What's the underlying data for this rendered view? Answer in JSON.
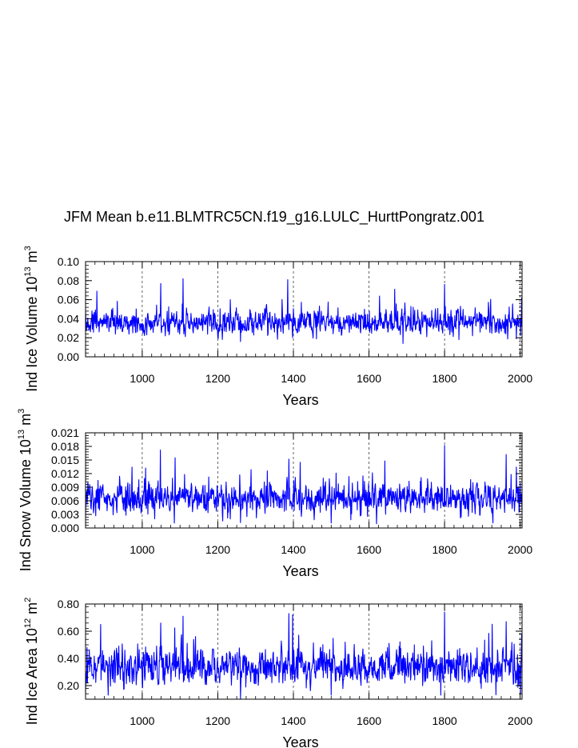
{
  "title": "JFM Mean b.e11.BLMTRC5CN.f19_g16.LULC_HurttPongratz.001",
  "colors": {
    "series": "#0000ff",
    "axis": "#000000",
    "gridline": "#000000"
  },
  "chart_data": [
    {
      "type": "line",
      "name": "ice-volume",
      "ylabel": {
        "prefix": "Ind Ice Volume 10",
        "exp": "13",
        "unit": " m",
        "unit_exp": "3"
      },
      "xlabel": "Years",
      "xlim": [
        850,
        2005
      ],
      "ylim": [
        0.0,
        0.1
      ],
      "xticks": [
        1000,
        1200,
        1400,
        1600,
        1800,
        2000
      ],
      "xtick_labels": [
        "1000",
        "1200",
        "1400",
        "1600",
        "1800",
        "2000"
      ],
      "yticks": [
        0.0,
        0.02,
        0.04,
        0.06,
        0.08,
        0.1
      ],
      "ytick_labels": [
        "0.00",
        "0.02",
        "0.04",
        "0.06",
        "0.08",
        "0.10"
      ],
      "vgrid_dashed": [
        1000,
        1200,
        1400,
        1600,
        1800,
        2000
      ],
      "series": [
        {
          "name": "JFM Mean",
          "x_start": 850,
          "x_step": 1,
          "mean": 0.036,
          "spread": 0.0085,
          "seed": 11,
          "peaks": [
            [
              880,
              0.069
            ],
            [
              1049,
              0.077
            ],
            [
              1108,
              0.082
            ],
            [
              1385,
              0.081
            ],
            [
              1668,
              0.071
            ],
            [
              1800,
              0.076
            ],
            [
              2004,
              0.062
            ]
          ],
          "troughs": [
            [
              1260,
              0.016
            ],
            [
              1690,
              0.014
            ],
            [
              1990,
              0.019
            ]
          ]
        }
      ]
    },
    {
      "type": "line",
      "name": "snow-volume",
      "ylabel": {
        "prefix": "Ind Snow Volume 10",
        "exp": "13",
        "unit": " m",
        "unit_exp": "3"
      },
      "xlabel": "Years",
      "xlim": [
        850,
        2005
      ],
      "ylim": [
        0.0,
        0.021
      ],
      "xticks": [
        1000,
        1200,
        1400,
        1600,
        1800,
        2000
      ],
      "xtick_labels": [
        "1000",
        "1200",
        "1400",
        "1600",
        "1800",
        "2000"
      ],
      "yticks": [
        0.0,
        0.003,
        0.006,
        0.009,
        0.012,
        0.015,
        0.018,
        0.021
      ],
      "ytick_labels": [
        "0.000",
        "0.003",
        "0.006",
        "0.009",
        "0.012",
        "0.015",
        "0.018",
        "0.021"
      ],
      "vgrid_dashed": [
        1000,
        1200,
        1400,
        1600,
        1800,
        2000
      ],
      "series": [
        {
          "name": "JFM Mean",
          "x_start": 850,
          "x_step": 1,
          "mean": 0.0064,
          "spread": 0.0021,
          "seed": 23,
          "peaks": [
            [
              1048,
              0.0172
            ],
            [
              1087,
              0.0155
            ],
            [
              1388,
              0.0152
            ],
            [
              1642,
              0.0148
            ],
            [
              1800,
              0.0182
            ],
            [
              1963,
              0.0162
            ]
          ],
          "troughs": [
            [
              1085,
              0.0011
            ],
            [
              1260,
              0.0012
            ],
            [
              1500,
              0.0011
            ]
          ]
        }
      ]
    },
    {
      "type": "line",
      "name": "ice-area",
      "ylabel": {
        "prefix": "Ind Ice Area 10",
        "exp": "12",
        "unit": " m",
        "unit_exp": "2"
      },
      "xlabel": "Years",
      "xlim": [
        850,
        2005
      ],
      "ylim": [
        0.1,
        0.8
      ],
      "xticks": [
        1000,
        1200,
        1400,
        1600,
        1800,
        2000
      ],
      "xtick_labels": [
        "1000",
        "1200",
        "1400",
        "1600",
        "1800",
        "2000"
      ],
      "yticks": [
        0.2,
        0.4,
        0.6,
        0.8
      ],
      "ytick_labels": [
        "0.20",
        "0.40",
        "0.60",
        "0.80"
      ],
      "vgrid_dashed": [
        1000,
        1200,
        1400,
        1600,
        1800,
        2000
      ],
      "series": [
        {
          "name": "JFM Mean",
          "x_start": 850,
          "x_step": 1,
          "mean": 0.34,
          "spread": 0.085,
          "seed": 37,
          "peaks": [
            [
              890,
              0.65
            ],
            [
              1049,
              0.66
            ],
            [
              1108,
              0.71
            ],
            [
              1388,
              0.73
            ],
            [
              1398,
              0.72
            ],
            [
              1800,
              0.74
            ],
            [
              1963,
              0.67
            ],
            [
              2004,
              0.58
            ]
          ],
          "troughs": [
            [
              910,
              0.13
            ],
            [
              1260,
              0.1
            ],
            [
              1500,
              0.13
            ],
            [
              1790,
              0.13
            ]
          ]
        }
      ]
    }
  ]
}
